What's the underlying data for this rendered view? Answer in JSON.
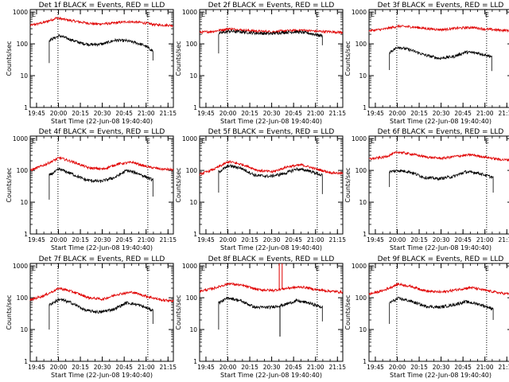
{
  "colors": {
    "events": "#000000",
    "lld": "#e00000",
    "frame": "#000000",
    "background": "#ffffff"
  },
  "chart_data": {
    "type": "line",
    "layout": "3x3 grid",
    "ylabel": "Counts/sec",
    "xlabel": "Start Time (22-Jun-08 19:40:40)",
    "x_ticks": [
      "19:45",
      "20:00",
      "20:15",
      "20:30",
      "20:45",
      "21:00",
      "21:15"
    ],
    "x_tick_minutes": [
      4.33,
      19.33,
      34.33,
      49.33,
      64.33,
      79.33,
      94.33
    ],
    "xlim_minutes": [
      0,
      98
    ],
    "yscale": "log",
    "ylim": [
      1,
      1200
    ],
    "y_ticks": [
      "1",
      "10",
      "100",
      "1000"
    ],
    "y_tick_values": [
      1,
      10,
      100,
      1000
    ],
    "vlines_minutes": [
      19.0,
      80.5
    ],
    "marker_label": "E",
    "panels": [
      {
        "title": "Det 1f BLACK = Events, RED = LLD",
        "events_start": 13,
        "events_end": 84,
        "events_start_drop": 25,
        "events_end_drop": 30,
        "events": {
          "t": [
            13,
            20,
            27,
            35,
            42,
            50,
            58,
            66,
            72,
            78,
            84
          ],
          "v": [
            130,
            180,
            140,
            105,
            95,
            100,
            130,
            125,
            110,
            90,
            60
          ]
        },
        "lld": {
          "t": [
            0,
            10,
            18,
            26,
            35,
            45,
            55,
            66,
            76,
            86,
            98
          ],
          "v": [
            380,
            480,
            650,
            560,
            480,
            420,
            440,
            500,
            470,
            400,
            380
          ]
        },
        "spikes": []
      },
      {
        "title": "Det 2f BLACK = Events, RED = LLD",
        "events_start": 13,
        "events_end": 84,
        "events_start_drop": 50,
        "events_end_drop": 90,
        "events": {
          "t": [
            13,
            20,
            28,
            38,
            48,
            58,
            66,
            74,
            84
          ],
          "v": [
            210,
            250,
            240,
            220,
            210,
            230,
            240,
            220,
            180
          ]
        },
        "lld": {
          "t": [
            0,
            10,
            20,
            30,
            40,
            50,
            60,
            70,
            80,
            90,
            98
          ],
          "v": [
            230,
            250,
            300,
            270,
            250,
            240,
            260,
            270,
            250,
            240,
            230
          ]
        },
        "spikes": []
      },
      {
        "title": "Det 3f BLACK = Events, RED = LLD",
        "events_start": 14,
        "events_end": 84,
        "events_start_drop": 15,
        "events_end_drop": 14,
        "events": {
          "t": [
            14,
            20,
            28,
            38,
            48,
            58,
            66,
            74,
            84
          ],
          "v": [
            55,
            80,
            65,
            45,
            35,
            40,
            55,
            52,
            40
          ]
        },
        "lld": {
          "t": [
            0,
            10,
            20,
            30,
            40,
            50,
            60,
            70,
            80,
            90,
            98
          ],
          "v": [
            260,
            290,
            360,
            340,
            300,
            280,
            310,
            330,
            290,
            270,
            260
          ]
        },
        "spikes": []
      },
      {
        "title": "Det 4f BLACK = Events, RED = LLD",
        "events_start": 13,
        "events_end": 84,
        "events_start_drop": 12,
        "events_end_drop": 15,
        "events": {
          "t": [
            13,
            20,
            28,
            38,
            48,
            58,
            66,
            74,
            84
          ],
          "v": [
            70,
            110,
            80,
            50,
            45,
            60,
            100,
            80,
            50
          ]
        },
        "lld": {
          "t": [
            0,
            10,
            20,
            30,
            40,
            50,
            60,
            70,
            80,
            90,
            98
          ],
          "v": [
            100,
            150,
            250,
            180,
            120,
            110,
            160,
            180,
            130,
            110,
            105
          ]
        },
        "spikes": []
      },
      {
        "title": "Det 5f BLACK = Events, RED = LLD",
        "events_start": 13,
        "events_end": 84,
        "events_start_drop": 20,
        "events_end_drop": 18,
        "events": {
          "t": [
            13,
            20,
            28,
            38,
            48,
            58,
            66,
            74,
            84
          ],
          "v": [
            90,
            140,
            120,
            70,
            65,
            80,
            110,
            100,
            70
          ]
        },
        "lld": {
          "t": [
            0,
            10,
            20,
            30,
            40,
            50,
            60,
            70,
            80,
            90,
            98
          ],
          "v": [
            75,
            110,
            190,
            150,
            100,
            90,
            130,
            150,
            110,
            85,
            80
          ]
        },
        "spikes": []
      },
      {
        "title": "Det 6f BLACK = Events, RED = LLD",
        "events_start": 14,
        "events_end": 85,
        "events_start_drop": 30,
        "events_end_drop": 20,
        "events": {
          "t": [
            14,
            20,
            28,
            38,
            48,
            58,
            66,
            74,
            85
          ],
          "v": [
            90,
            100,
            90,
            60,
            55,
            65,
            90,
            85,
            60
          ]
        },
        "lld": {
          "t": [
            0,
            10,
            20,
            30,
            40,
            50,
            60,
            70,
            80,
            90,
            98
          ],
          "v": [
            230,
            260,
            380,
            320,
            260,
            240,
            280,
            310,
            260,
            220,
            210
          ]
        },
        "spikes": []
      },
      {
        "title": "Det 7f BLACK = Events, RED = LLD",
        "events_start": 13,
        "events_end": 84,
        "events_start_drop": 10,
        "events_end_drop": 15,
        "events": {
          "t": [
            13,
            20,
            28,
            38,
            48,
            58,
            66,
            74,
            84
          ],
          "v": [
            60,
            90,
            70,
            40,
            35,
            45,
            70,
            60,
            40
          ]
        },
        "lld": {
          "t": [
            0,
            10,
            20,
            30,
            40,
            50,
            60,
            70,
            80,
            90,
            98
          ],
          "v": [
            85,
            120,
            200,
            150,
            100,
            90,
            130,
            150,
            110,
            85,
            80
          ]
        },
        "spikes": []
      },
      {
        "title": "Det 8f BLACK = Events, RED = LLD",
        "events_start": 13,
        "events_end": 84,
        "events_start_drop": 10,
        "events_end_drop": 18,
        "events": {
          "t": [
            13,
            20,
            28,
            38,
            48,
            58,
            66,
            74,
            84
          ],
          "v": [
            70,
            100,
            80,
            50,
            50,
            60,
            80,
            70,
            50
          ]
        },
        "lld": {
          "t": [
            0,
            10,
            20,
            30,
            40,
            50,
            60,
            70,
            80,
            90,
            98
          ],
          "v": [
            160,
            200,
            280,
            240,
            180,
            170,
            200,
            220,
            180,
            160,
            150
          ]
        },
        "spikes": [
          {
            "series": "lld",
            "t": 54.5,
            "v": 1200
          },
          {
            "series": "lld",
            "t": 56.5,
            "v": 1200
          },
          {
            "series": "events",
            "t": 55.0,
            "v": 6
          }
        ]
      },
      {
        "title": "Det 9f BLACK = Events, RED = LLD",
        "events_start": 14,
        "events_end": 85,
        "events_start_drop": 15,
        "events_end_drop": 20,
        "events": {
          "t": [
            14,
            20,
            28,
            38,
            48,
            58,
            66,
            74,
            85
          ],
          "v": [
            70,
            95,
            80,
            55,
            50,
            60,
            75,
            65,
            45
          ]
        },
        "lld": {
          "t": [
            0,
            10,
            20,
            30,
            40,
            50,
            60,
            70,
            80,
            90,
            98
          ],
          "v": [
            130,
            170,
            270,
            220,
            160,
            150,
            180,
            210,
            170,
            140,
            130
          ]
        },
        "spikes": []
      }
    ]
  }
}
